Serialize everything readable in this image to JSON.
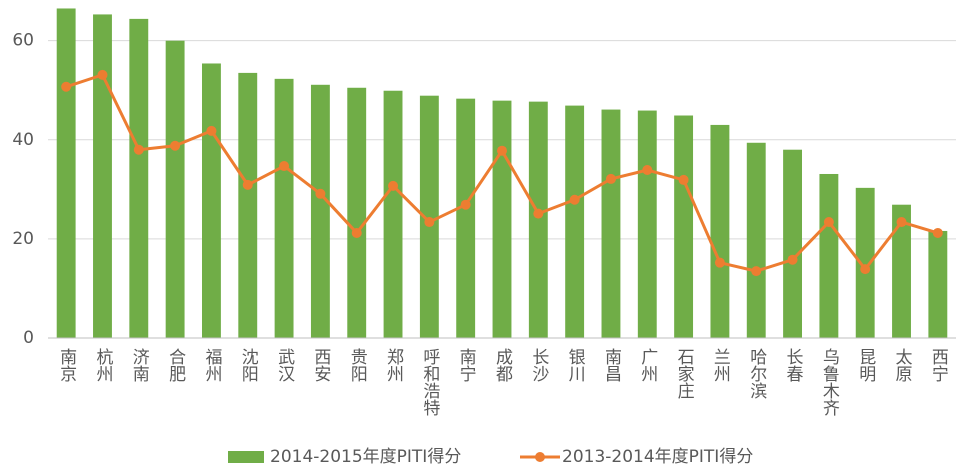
{
  "chart_data": {
    "type": "bar_line",
    "categories": [
      "南京",
      "杭州",
      "济南",
      "合肥",
      "福州",
      "沈阳",
      "武汉",
      "西安",
      "贵阳",
      "郑州",
      "呼和浩特",
      "南宁",
      "成都",
      "长沙",
      "银川",
      "南昌",
      "广州",
      "石家庄",
      "兰州",
      "哈尔滨",
      "长春",
      "乌鲁木齐",
      "昆明",
      "太原",
      "西宁"
    ],
    "series": [
      {
        "name": "2014-2015年度PITI得分",
        "color": "#70ad47",
        "type": "bar",
        "values": [
          66.5,
          65.3,
          64.4,
          60.0,
          55.4,
          53.5,
          52.3,
          51.1,
          50.5,
          49.9,
          48.9,
          48.3,
          47.9,
          47.7,
          46.9,
          46.1,
          45.9,
          44.9,
          43.0,
          39.4,
          38.0,
          33.1,
          30.3,
          26.9,
          21.6
        ]
      },
      {
        "name": "2013-2014年度PITI得分",
        "color": "#ed7d31",
        "type": "line",
        "values": [
          50.7,
          53.1,
          38.0,
          38.8,
          41.8,
          30.9,
          34.7,
          29.1,
          21.2,
          30.7,
          23.4,
          26.9,
          37.8,
          25.1,
          27.9,
          32.1,
          33.9,
          31.9,
          15.2,
          13.5,
          15.8,
          23.4,
          13.9,
          23.4,
          21.2
        ]
      }
    ],
    "ylim": [
      0,
      67
    ],
    "yticks": [
      0,
      20,
      40,
      60
    ],
    "grid": true,
    "legend": "bottom"
  }
}
